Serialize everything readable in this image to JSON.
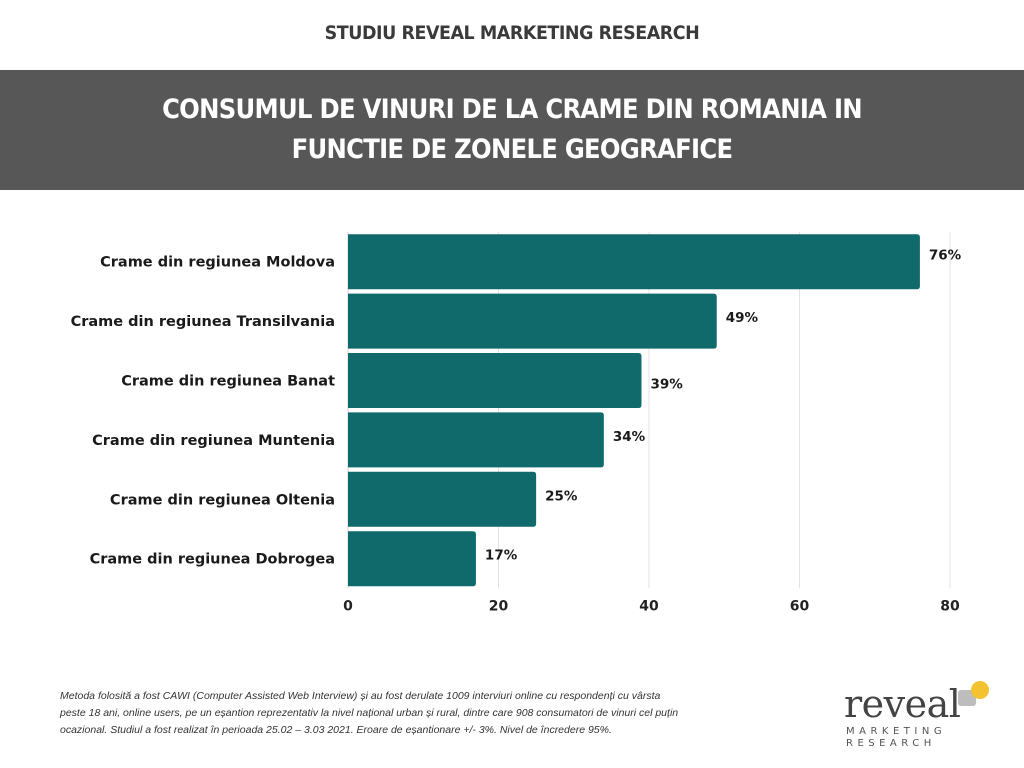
{
  "header": {
    "study_label": "STUDIU REVEAL MARKETING RESEARCH",
    "title_line1": "CONSUMUL DE VINURI DE LA CRAME DIN ROMANIA IN",
    "title_line2": "FUNCTIE DE ZONELE GEOGRAFICE"
  },
  "chart_data": {
    "type": "bar",
    "orientation": "horizontal",
    "categories": [
      "Crame din regiunea Moldova",
      "Crame din regiunea Transilvania",
      "Crame din regiunea Banat",
      "Crame din regiunea Muntenia",
      "Crame din regiunea Oltenia",
      "Crame din regiunea Dobrogea"
    ],
    "values": [
      76,
      49,
      39,
      34,
      25,
      17
    ],
    "value_labels": [
      "76%",
      "49%",
      "39%",
      "34%",
      "25%",
      "17%"
    ],
    "xticks": [
      "0",
      "20",
      "40",
      "60",
      "80"
    ],
    "xlim": [
      0,
      80
    ],
    "grid": true,
    "bar_color": "#10696b"
  },
  "footnote": "Metoda folosită a fost CAWI (Computer Assisted Web Interview) și au fost derulate 1009 interviuri online cu respondenți cu vârsta peste 18 ani, online users, pe un eșantion reprezentativ la nivel național urban și rural, dintre care 908 consumatori de vinuri cel puțin ocazional. Studiul a fost realizat în perioada 25.02 – 3.03 2021. Eroare de eșantionare +/- 3%. Nivel de încredere 95%.",
  "logo": {
    "word": "reveal",
    "sub_line1": "MARKETING",
    "sub_line2": "RESEARCH",
    "accent_color": "#f2c230"
  }
}
